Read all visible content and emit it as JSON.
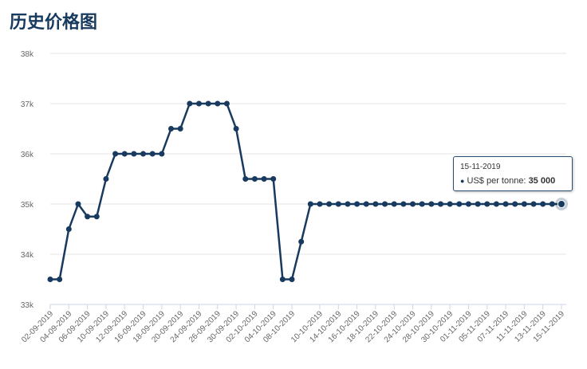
{
  "page_title": "历史价格图",
  "chart_data": {
    "type": "line",
    "title": "",
    "xlabel": "",
    "ylabel": "",
    "ylim": [
      33000,
      38000
    ],
    "y_ticks": [
      33000,
      34000,
      35000,
      36000,
      37000,
      38000
    ],
    "y_tick_labels": [
      "33k",
      "34k",
      "35k",
      "36k",
      "37k",
      "38k"
    ],
    "x_tick_labels": [
      "02-09-2019",
      "04-09-2019",
      "06-09-2019",
      "10-09-2019",
      "12-09-2019",
      "16-09-2019",
      "18-09-2019",
      "20-09-2019",
      "24-09-2019",
      "26-09-2019",
      "30-09-2019",
      "02-10-2019",
      "04-10-2019",
      "08-10-2019",
      "10-10-2019",
      "14-10-2019",
      "16-10-2019",
      "18-10-2019",
      "22-10-2019",
      "24-10-2019",
      "28-10-2019",
      "30-10-2019",
      "01-11-2019",
      "05-11-2019",
      "07-11-2019",
      "11-11-2019",
      "13-11-2019",
      "15-11-2019"
    ],
    "grid": true,
    "legend": "none",
    "series": [
      {
        "name": "US$ per tonne",
        "color": "#173a5e",
        "values": [
          33500,
          33500,
          34500,
          35000,
          34750,
          34750,
          35500,
          36000,
          36000,
          36000,
          36000,
          36000,
          36000,
          36500,
          36500,
          37000,
          37000,
          37000,
          37000,
          37000,
          36500,
          35500,
          35500,
          35500,
          35500,
          33500,
          33500,
          34250,
          35000,
          35000,
          35000,
          35000,
          35000,
          35000,
          35000,
          35000,
          35000,
          35000,
          35000,
          35000,
          35000,
          35000,
          35000,
          35000,
          35000,
          35000,
          35000,
          35000,
          35000,
          35000,
          35000,
          35000,
          35000,
          35000,
          35000,
          35000
        ]
      }
    ],
    "tooltip": {
      "date": "15-11-2019",
      "label": "US$ per tonne: ",
      "value": "35 000"
    }
  }
}
